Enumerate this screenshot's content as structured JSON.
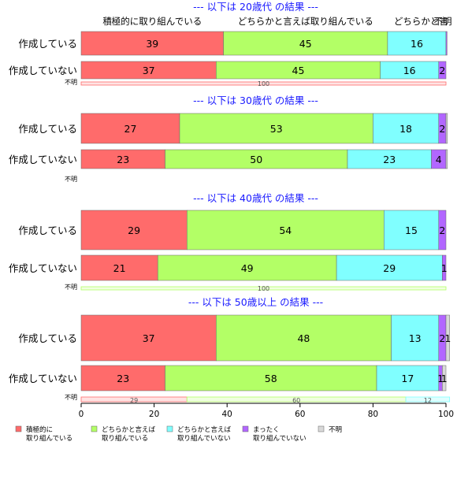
{
  "colors": {
    "grp1": "#FF6B6B",
    "grp2": "#B3FF66",
    "grp3": "#80FFFF",
    "grp4": "#B266FF",
    "grp5": "#D9D9D9",
    "title": "#1A1AFF"
  },
  "chart_data": {
    "type": "bar",
    "orientation": "horizontal",
    "stacked": true,
    "xlim": [
      0,
      100
    ],
    "x_ticks": [
      "0",
      "20",
      "40",
      "60",
      "80",
      "100"
    ],
    "legend": {
      "position": "bottom",
      "entries": [
        {
          "key": "grp1",
          "lines": [
            "積極的に",
            "取り組んでいる"
          ]
        },
        {
          "key": "grp2",
          "lines": [
            "どちらかと言えば",
            "取り組んでいる"
          ]
        },
        {
          "key": "grp3",
          "lines": [
            "どちらかと言えば",
            "取り組んでいない"
          ]
        },
        {
          "key": "grp4",
          "lines": [
            "まったく",
            "取り組んでいない"
          ]
        },
        {
          "key": "grp5",
          "lines": [
            "不明"
          ]
        }
      ]
    },
    "panels": [
      {
        "title": "--- 以下は 20歳代 の結果 ---",
        "header_labels": [
          "積極的に取り組んでいる",
          "どちらかと言えば取り組んでいる",
          "どちらかと言",
          "不明"
        ],
        "rows": [
          {
            "label": "作成している",
            "values": [
              39,
              45,
              16,
              0.3,
              0
            ],
            "labels": [
              "39",
              "45",
              "16",
              "",
              ""
            ]
          },
          {
            "label": "作成していない",
            "values": [
              37,
              45,
              16,
              2,
              0
            ],
            "labels": [
              "37",
              "45",
              "16",
              "2",
              ""
            ]
          },
          {
            "label": "不明",
            "thin": true,
            "values": [
              100,
              0,
              0,
              0,
              0
            ],
            "labels": [
              "100",
              "",
              "",
              "",
              ""
            ]
          }
        ]
      },
      {
        "title": "--- 以下は 30歳代 の結果 ---",
        "header_labels": [],
        "rows": [
          {
            "label": "作成している",
            "values": [
              27,
              53,
              18,
              2,
              0.4
            ],
            "labels": [
              "27",
              "53",
              "18",
              "2",
              ""
            ]
          },
          {
            "label": "作成していない",
            "values": [
              23,
              50,
              23,
              4,
              0.4
            ],
            "labels": [
              "23",
              "50",
              "23",
              "4",
              ""
            ]
          },
          {
            "label": "不明",
            "thin": true,
            "values": [
              0,
              0,
              0,
              0,
              0
            ],
            "labels": [
              "",
              "",
              "",
              "",
              ""
            ]
          }
        ]
      },
      {
        "title": "--- 以下は 40歳代 の結果 ---",
        "header_labels": [],
        "rows": [
          {
            "label": "作成している",
            "values": [
              29,
              54,
              15,
              2,
              0
            ],
            "labels": [
              "29",
              "54",
              "15",
              "2",
              ""
            ]
          },
          {
            "label": "作成していない",
            "values": [
              21,
              49,
              29,
              1,
              0
            ],
            "labels": [
              "21",
              "49",
              "29",
              "1",
              ""
            ]
          },
          {
            "label": "不明",
            "thin": true,
            "values": [
              0,
              100,
              0,
              0,
              0
            ],
            "labels": [
              "",
              "100",
              "",
              "",
              ""
            ]
          }
        ]
      },
      {
        "title": "--- 以下は 50歳以上 の結果 ---",
        "header_labels": [],
        "rows": [
          {
            "label": "作成している",
            "values": [
              37,
              48,
              13,
              2,
              1
            ],
            "labels": [
              "37",
              "48",
              "13",
              "2",
              "1"
            ]
          },
          {
            "label": "作成していない",
            "values": [
              23,
              58,
              17,
              1,
              1
            ],
            "labels": [
              "23",
              "58",
              "17",
              "1",
              "1"
            ]
          },
          {
            "label": "不明",
            "thin": true,
            "values": [
              29,
              60,
              12,
              0,
              0
            ],
            "labels": [
              "29",
              "60",
              "12",
              "",
              ""
            ]
          }
        ]
      }
    ]
  }
}
